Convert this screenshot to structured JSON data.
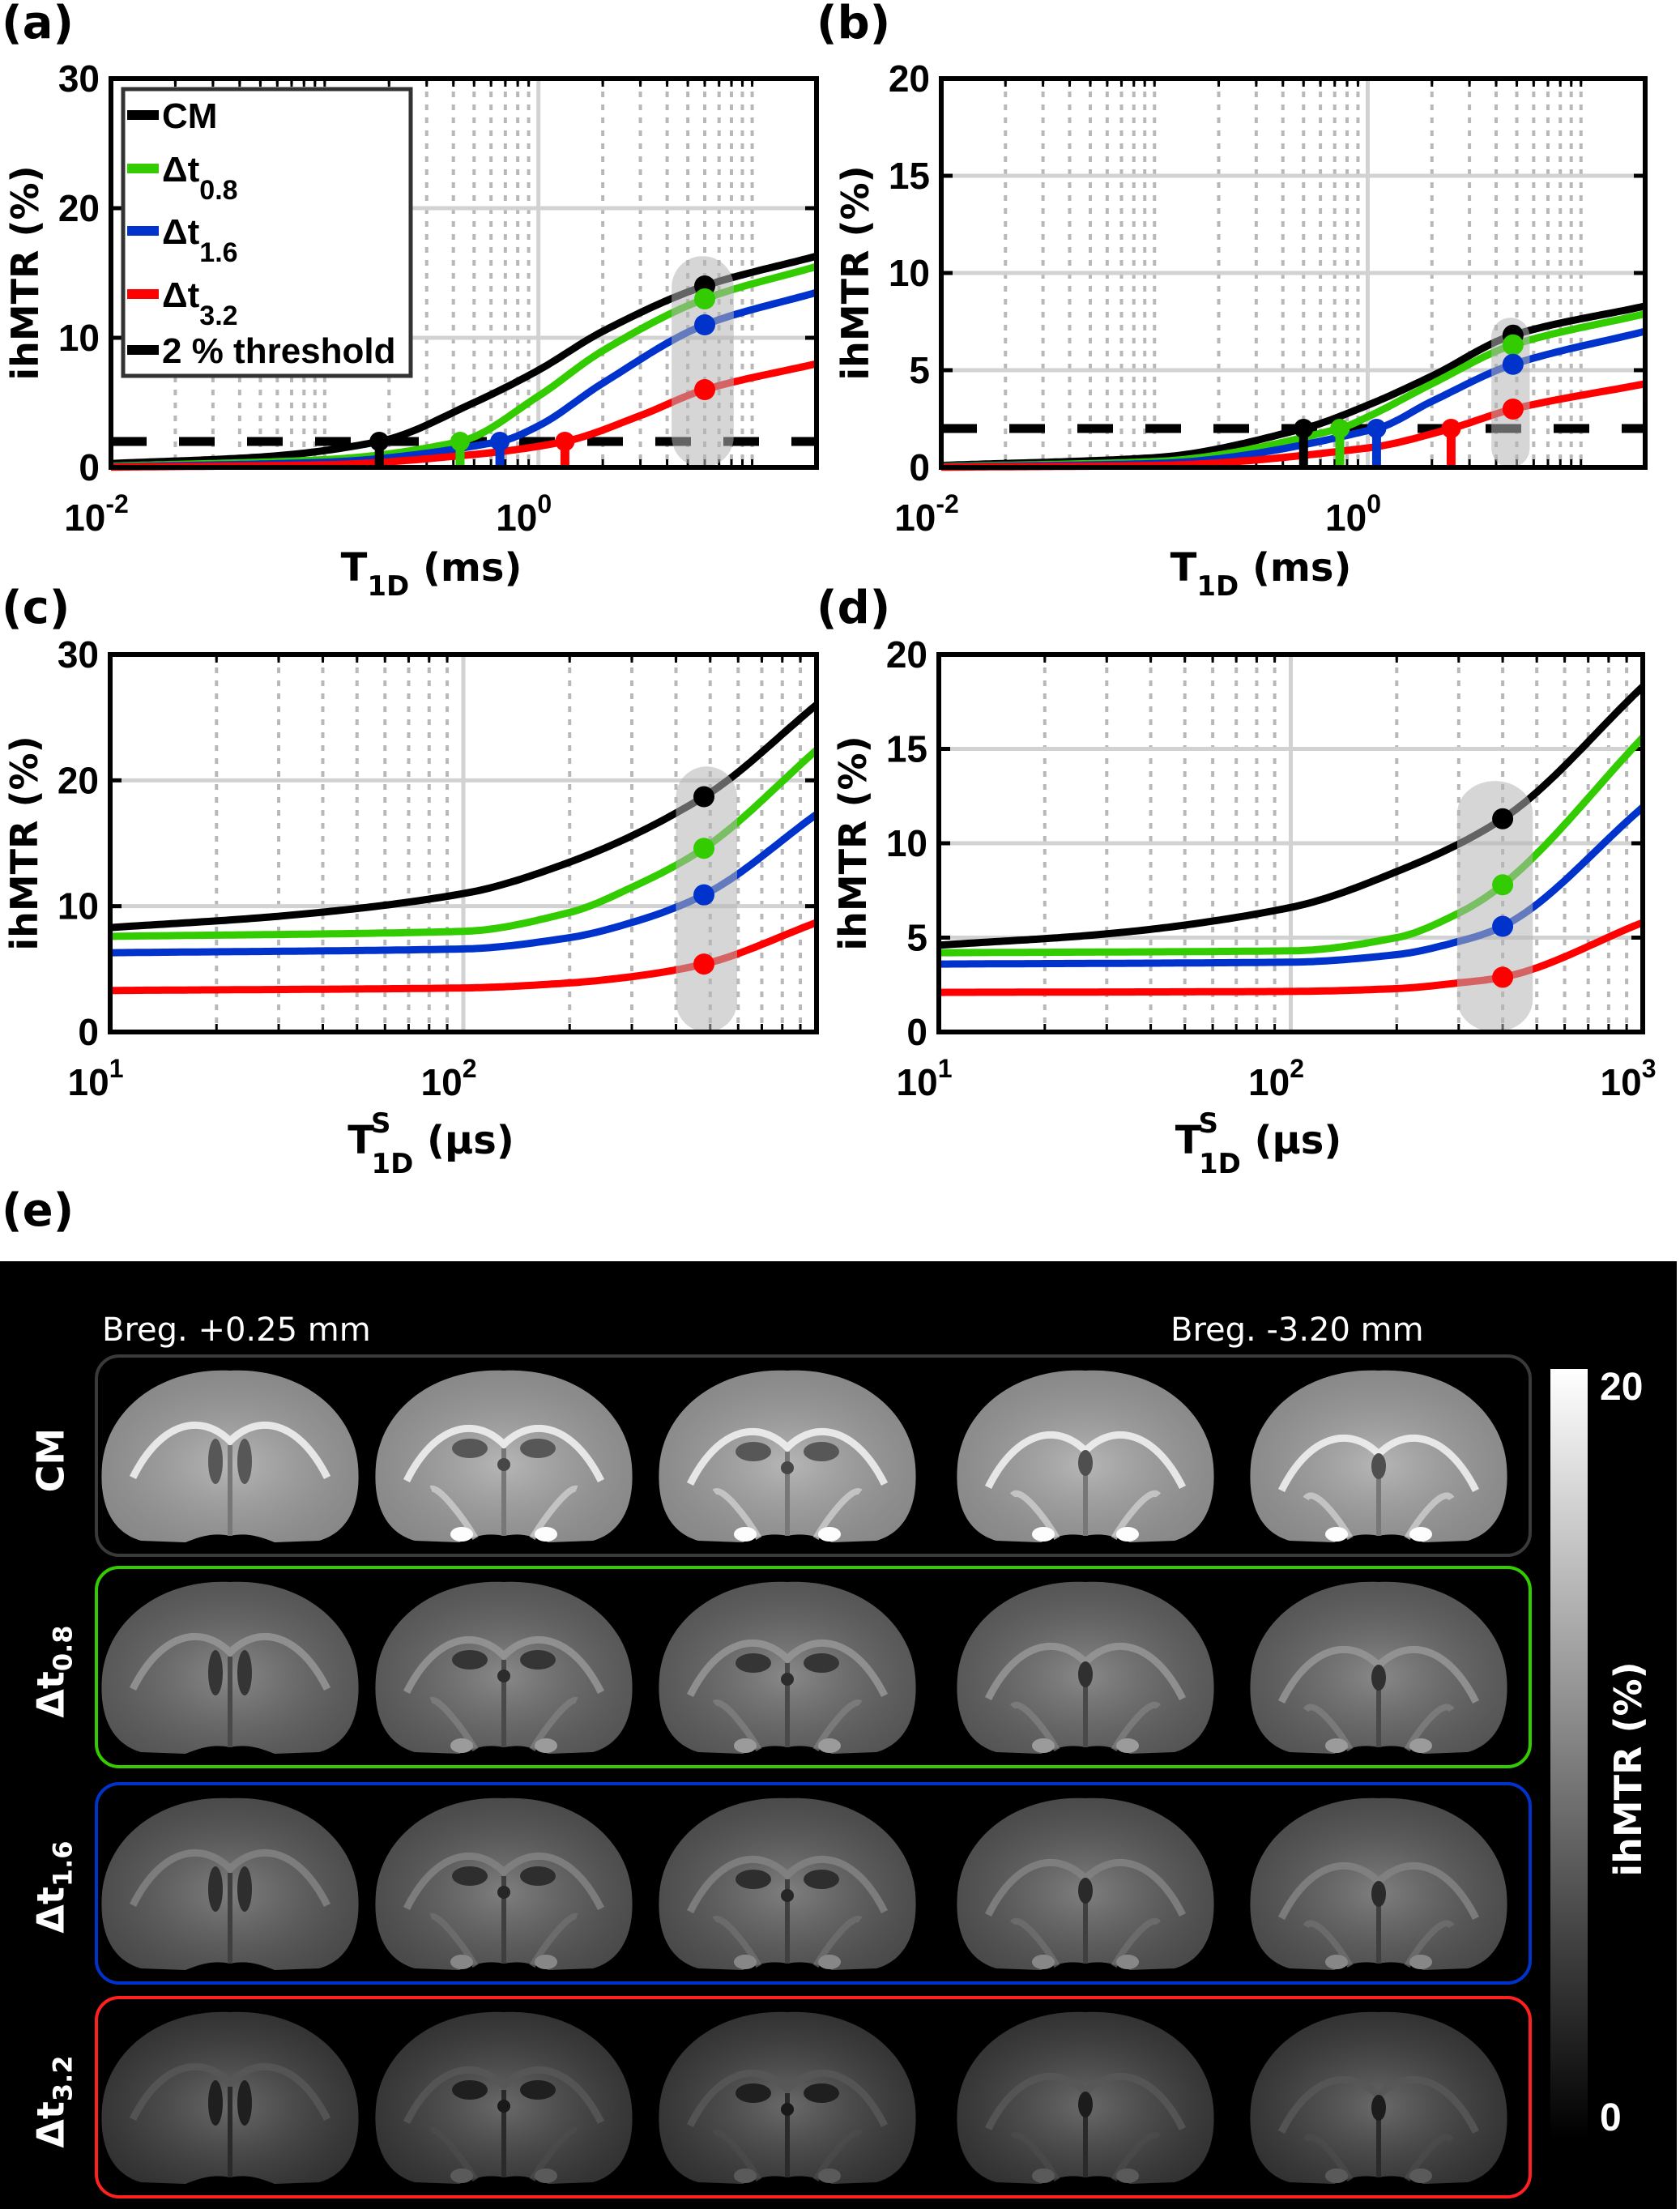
{
  "chart_data": [
    {
      "panel_label": "(a)",
      "type": "line",
      "xscale": "log",
      "xlim": [
        0.01,
        20
      ],
      "ylim": [
        0,
        30
      ],
      "yticks": [
        "0",
        "10",
        "20",
        "30"
      ],
      "ytick_values": [
        0,
        10,
        20,
        30
      ],
      "xticks": [
        {
          "value": 0.01,
          "base": "10",
          "exp": "-2"
        },
        {
          "value": 1,
          "base": "10",
          "exp": "0"
        }
      ],
      "xlabel": {
        "main": "T",
        "sup": "",
        "sub": "1D",
        "unit": " (ms)"
      },
      "ylabel": "ihMTR (%)",
      "grid": true,
      "threshold": 2,
      "highlight": {
        "x": [
          4.2,
          8.2
        ],
        "y": [
          0,
          16.3
        ]
      },
      "legend": {
        "placement": "top-left",
        "entries": [
          {
            "label": "CM",
            "sub": "",
            "color": "#000000",
            "dashed": false
          },
          {
            "label": "Δt",
            "sub": "0.8",
            "color": "#33cc00",
            "dashed": false
          },
          {
            "label": "Δt",
            "sub": "1.6",
            "color": "#0033cc",
            "dashed": false
          },
          {
            "label": "Δt",
            "sub": "3.2",
            "color": "#ff0000",
            "dashed": false
          },
          {
            "label": "2 % threshold",
            "sub": "",
            "color": "#000000",
            "dashed": true
          }
        ]
      },
      "series": [
        {
          "name": "CM",
          "color": "#000000",
          "points": [
            [
              0.01,
              0.3
            ],
            [
              0.05,
              0.8
            ],
            [
              0.18,
              2
            ],
            [
              0.5,
              5
            ],
            [
              1,
              7.5
            ],
            [
              2,
              10.5
            ],
            [
              6,
              14
            ],
            [
              20,
              16.3
            ]
          ],
          "marker": [
            6,
            14
          ],
          "crossing": 0.18
        },
        {
          "name": "Δt0.8",
          "color": "#33cc00",
          "points": [
            [
              0.01,
              0.1
            ],
            [
              0.1,
              0.6
            ],
            [
              0.43,
              2
            ],
            [
              1,
              5.5
            ],
            [
              2,
              9
            ],
            [
              6,
              13
            ],
            [
              20,
              15.5
            ]
          ],
          "marker": [
            6,
            13
          ],
          "crossing": 0.43
        },
        {
          "name": "Δt1.6",
          "color": "#0033cc",
          "points": [
            [
              0.01,
              0.05
            ],
            [
              0.1,
              0.4
            ],
            [
              0.66,
              2
            ],
            [
              1,
              3.2
            ],
            [
              2,
              6.5
            ],
            [
              6,
              11
            ],
            [
              20,
              13.5
            ]
          ],
          "marker": [
            6,
            11
          ],
          "crossing": 0.66
        },
        {
          "name": "Δt3.2",
          "color": "#ff0000",
          "points": [
            [
              0.01,
              0.02
            ],
            [
              0.1,
              0.2
            ],
            [
              0.5,
              1
            ],
            [
              1.33,
              2
            ],
            [
              3,
              4
            ],
            [
              6,
              6
            ],
            [
              20,
              8
            ]
          ],
          "marker": [
            6,
            6
          ],
          "crossing": 1.33
        }
      ]
    },
    {
      "panel_label": "(b)",
      "type": "line",
      "xscale": "log",
      "xlim": [
        0.01,
        20
      ],
      "ylim": [
        0,
        20
      ],
      "yticks": [
        "0",
        "5",
        "10",
        "15",
        "20"
      ],
      "ytick_values": [
        0,
        5,
        10,
        15,
        20
      ],
      "xticks": [
        {
          "value": 0.01,
          "base": "10",
          "exp": "-2"
        },
        {
          "value": 1,
          "base": "10",
          "exp": "0"
        }
      ],
      "xlabel": {
        "main": "T",
        "sup": "",
        "sub": "1D",
        "unit": " (ms)"
      },
      "ylabel": "ihMTR (%)",
      "grid": true,
      "threshold": 2,
      "highlight": {
        "x": [
          3.8,
          5.75
        ],
        "y": [
          0,
          7.7
        ]
      },
      "series": [
        {
          "name": "CM",
          "color": "#000000",
          "points": [
            [
              0.01,
              0.1
            ],
            [
              0.1,
              0.5
            ],
            [
              0.5,
              2
            ],
            [
              1,
              3.2
            ],
            [
              2,
              4.7
            ],
            [
              4.8,
              6.8
            ],
            [
              20,
              8.3
            ]
          ],
          "marker": [
            4.8,
            6.8
          ],
          "crossing": 0.5
        },
        {
          "name": "Δt0.8",
          "color": "#33cc00",
          "points": [
            [
              0.01,
              0.05
            ],
            [
              0.1,
              0.3
            ],
            [
              0.74,
              2
            ],
            [
              1,
              2.6
            ],
            [
              2,
              4.3
            ],
            [
              4.8,
              6.3
            ],
            [
              20,
              7.9
            ]
          ],
          "marker": [
            4.8,
            6.3
          ],
          "crossing": 0.74
        },
        {
          "name": "Δt1.6",
          "color": "#0033cc",
          "points": [
            [
              0.01,
              0.03
            ],
            [
              0.1,
              0.2
            ],
            [
              1.1,
              2
            ],
            [
              2,
              3.4
            ],
            [
              4.8,
              5.3
            ],
            [
              20,
              7.0
            ]
          ],
          "marker": [
            4.8,
            5.3
          ],
          "crossing": 1.1
        },
        {
          "name": "Δt3.2",
          "color": "#ff0000",
          "points": [
            [
              0.01,
              0.01
            ],
            [
              0.1,
              0.1
            ],
            [
              1,
              1
            ],
            [
              2.46,
              2
            ],
            [
              4.8,
              3.0
            ],
            [
              20,
              4.3
            ]
          ],
          "marker": [
            4.8,
            3.0
          ],
          "crossing": 2.46
        }
      ]
    },
    {
      "panel_label": "(c)",
      "type": "line",
      "xscale": "log",
      "xlim": [
        10,
        1000
      ],
      "ylim": [
        0,
        30
      ],
      "yticks": [
        "0",
        "10",
        "20",
        "30"
      ],
      "ytick_values": [
        0,
        10,
        20,
        30
      ],
      "xticks": [
        {
          "value": 10,
          "base": "10",
          "exp": "1"
        },
        {
          "value": 100,
          "base": "10",
          "exp": "2"
        }
      ],
      "xlabel": {
        "main": "T",
        "sup": "S",
        "sub": "1D",
        "unit": " (μs)"
      },
      "ylabel": "ihMTR (%)",
      "grid": true,
      "highlight": {
        "x": [
          400,
          596
        ],
        "y": [
          0,
          21.1
        ]
      },
      "series": [
        {
          "name": "CM",
          "color": "#000000",
          "points": [
            [
              10,
              8.3
            ],
            [
              30,
              9.2
            ],
            [
              100,
              11
            ],
            [
              200,
              13.5
            ],
            [
              480,
              18.7
            ],
            [
              1000,
              26
            ]
          ],
          "marker": [
            480,
            18.7
          ]
        },
        {
          "name": "Δt0.8",
          "color": "#33cc00",
          "points": [
            [
              10,
              7.6
            ],
            [
              100,
              8
            ],
            [
              200,
              9.5
            ],
            [
              300,
              11.5
            ],
            [
              480,
              14.6
            ],
            [
              1000,
              22.4
            ]
          ],
          "marker": [
            480,
            14.6
          ]
        },
        {
          "name": "Δt1.6",
          "color": "#0033cc",
          "points": [
            [
              10,
              6.3
            ],
            [
              100,
              6.6
            ],
            [
              200,
              7.5
            ],
            [
              300,
              8.7
            ],
            [
              480,
              10.9
            ],
            [
              1000,
              17.3
            ]
          ],
          "marker": [
            480,
            10.9
          ]
        },
        {
          "name": "Δt3.2",
          "color": "#ff0000",
          "points": [
            [
              10,
              3.3
            ],
            [
              100,
              3.5
            ],
            [
              200,
              3.9
            ],
            [
              300,
              4.4
            ],
            [
              480,
              5.4
            ],
            [
              1000,
              8.7
            ]
          ],
          "marker": [
            480,
            5.4
          ]
        }
      ]
    },
    {
      "panel_label": "(d)",
      "type": "line",
      "xscale": "log",
      "xlim": [
        10,
        1000
      ],
      "ylim": [
        0,
        20
      ],
      "yticks": [
        "0",
        "5",
        "10",
        "15",
        "20"
      ],
      "ytick_values": [
        0,
        5,
        10,
        15,
        20
      ],
      "xticks": [
        {
          "value": 10,
          "base": "10",
          "exp": "1"
        },
        {
          "value": 100,
          "base": "10",
          "exp": "2"
        },
        {
          "value": 1000,
          "base": "10",
          "exp": "3"
        }
      ],
      "xlabel": {
        "main": "T",
        "sup": "S",
        "sub": "1D",
        "unit": " (μs)"
      },
      "ylabel": "ihMTR (%)",
      "grid": true,
      "highlight": {
        "x": [
          297,
          487
        ],
        "y": [
          0,
          13.3
        ]
      },
      "series": [
        {
          "name": "CM",
          "color": "#000000",
          "points": [
            [
              10,
              4.6
            ],
            [
              30,
              5.2
            ],
            [
              100,
              6.6
            ],
            [
              200,
              8.5
            ],
            [
              400,
              11.3
            ],
            [
              1000,
              18.3
            ]
          ],
          "marker": [
            400,
            11.3
          ]
        },
        {
          "name": "Δt0.8",
          "color": "#33cc00",
          "points": [
            [
              10,
              4.2
            ],
            [
              100,
              4.3
            ],
            [
              200,
              5
            ],
            [
              300,
              6.3
            ],
            [
              400,
              7.8
            ],
            [
              1000,
              15.6
            ]
          ],
          "marker": [
            400,
            7.8
          ]
        },
        {
          "name": "Δt1.6",
          "color": "#0033cc",
          "points": [
            [
              10,
              3.6
            ],
            [
              100,
              3.7
            ],
            [
              200,
              4.1
            ],
            [
              300,
              4.8
            ],
            [
              400,
              5.6
            ],
            [
              1000,
              11.9
            ]
          ],
          "marker": [
            400,
            5.6
          ]
        },
        {
          "name": "Δt3.2",
          "color": "#ff0000",
          "points": [
            [
              10,
              2.1
            ],
            [
              100,
              2.15
            ],
            [
              200,
              2.3
            ],
            [
              300,
              2.6
            ],
            [
              400,
              2.9
            ],
            [
              1000,
              5.8
            ]
          ],
          "marker": [
            400,
            2.9
          ]
        }
      ]
    }
  ],
  "panel_e": {
    "panel_label": "(e)",
    "breg_left": "Breg. +0.25 mm",
    "breg_right": "Breg. -3.20 mm",
    "rows": [
      {
        "label": "CM",
        "sub": "",
        "color": "#3a3a3a"
      },
      {
        "label": "Δt",
        "sub": "0.8",
        "color": "#33cc00"
      },
      {
        "label": "Δt",
        "sub": "1.6",
        "color": "#0033cc"
      },
      {
        "label": "Δt",
        "sub": "3.2",
        "color": "#ff2020"
      }
    ],
    "colorbar": {
      "max_label": "20",
      "min_label": "0",
      "label": "ihMTR (%)"
    }
  }
}
